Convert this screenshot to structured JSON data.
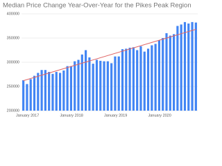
{
  "chart_data": {
    "type": "bar",
    "title": "Median Price Change Year-Over-Year for the Pikes Peak Region",
    "categories": [
      "January 2017",
      null,
      null,
      null,
      null,
      null,
      null,
      null,
      null,
      null,
      null,
      null,
      "January 2018",
      null,
      null,
      null,
      null,
      null,
      null,
      null,
      null,
      null,
      null,
      null,
      "January 2019",
      null,
      null,
      null,
      null,
      null,
      null,
      null,
      null,
      null,
      null,
      null,
      "January 2020",
      null,
      null,
      null,
      null,
      null,
      null,
      null,
      null,
      null,
      null,
      null
    ],
    "values": [
      263000,
      255000,
      265000,
      272000,
      278000,
      284000,
      284000,
      280000,
      276000,
      280000,
      278000,
      283000,
      292000,
      292000,
      302000,
      305000,
      316000,
      325000,
      310000,
      297000,
      305000,
      303000,
      302000,
      302000,
      298000,
      312000,
      312000,
      327000,
      328000,
      330000,
      331000,
      325000,
      333000,
      322000,
      328000,
      335000,
      338000,
      345000,
      350000,
      360000,
      355000,
      358000,
      375000,
      378000,
      383000,
      380000,
      383000,
      382000
    ],
    "color": "#4285f4",
    "trendline": {
      "color": "#e06666",
      "values": [
        262000,
        368000
      ]
    },
    "ylim": [
      200000,
      400000
    ],
    "yticks": [
      200000,
      250000,
      300000,
      350000,
      400000
    ],
    "grid": true
  }
}
